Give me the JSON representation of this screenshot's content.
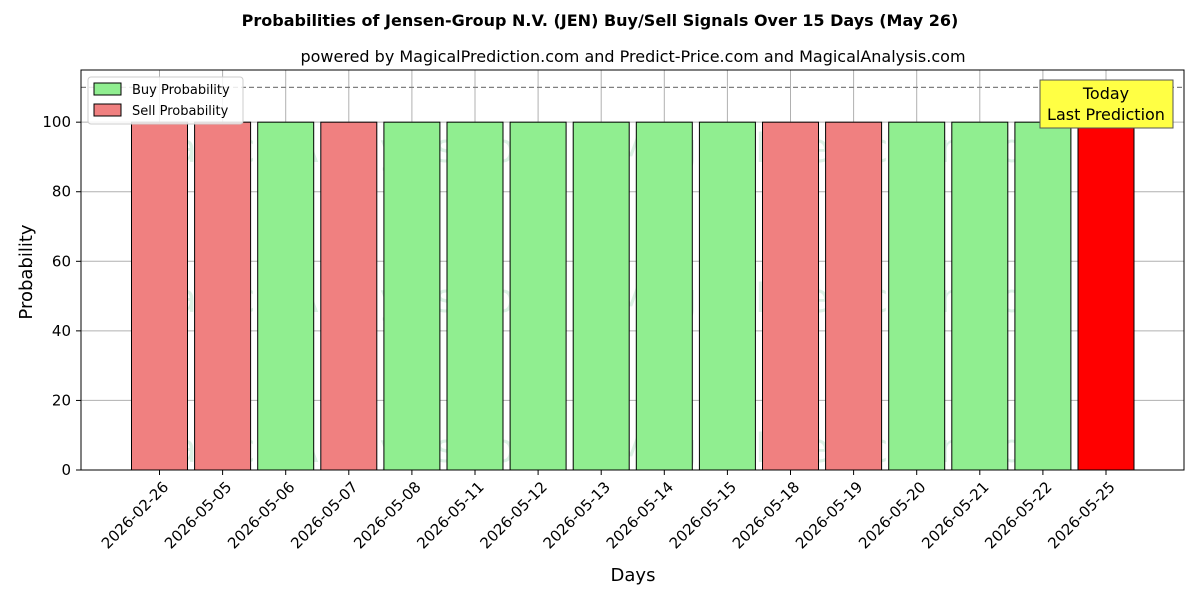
{
  "chart_data": {
    "type": "bar",
    "title": "Probabilities of Jensen-Group N.V. (JEN) Buy/Sell Signals Over 15 Days (May 26)",
    "subtitle": "powered by MagicalPrediction.com and Predict-Price.com and MagicalAnalysis.com",
    "xlabel": "Days",
    "ylabel": "Probability",
    "ylim": [
      0,
      115
    ],
    "yticks": [
      0,
      20,
      40,
      60,
      80,
      100
    ],
    "grid": true,
    "legend_position": "top-left",
    "threshold_line": 110,
    "categories": [
      "2026-02-26",
      "2026-05-05",
      "2026-05-06",
      "2026-05-07",
      "2026-05-08",
      "2026-05-11",
      "2026-05-12",
      "2026-05-13",
      "2026-05-14",
      "2026-05-15",
      "2026-05-18",
      "2026-05-19",
      "2026-05-20",
      "2026-05-21",
      "2026-05-22",
      "2026-05-25"
    ],
    "values": [
      100,
      100,
      100,
      100,
      100,
      100,
      100,
      100,
      100,
      100,
      100,
      100,
      100,
      100,
      100,
      100
    ],
    "signals": [
      "Sell",
      "Sell",
      "Buy",
      "Sell",
      "Buy",
      "Buy",
      "Buy",
      "Buy",
      "Buy",
      "Buy",
      "Sell",
      "Sell",
      "Buy",
      "Buy",
      "Buy",
      "Sell"
    ],
    "series": [
      {
        "name": "Buy Probability",
        "color": "#90ee90"
      },
      {
        "name": "Sell Probability",
        "color": "#f08080"
      }
    ],
    "last_bar_color": "#ff0000",
    "annotation": {
      "line1": "Today",
      "line2": "Last Prediction",
      "color": "#ffff44"
    },
    "watermarks": [
      "MagicalAnalysis.com",
      "MagicalPrediction.com"
    ]
  }
}
